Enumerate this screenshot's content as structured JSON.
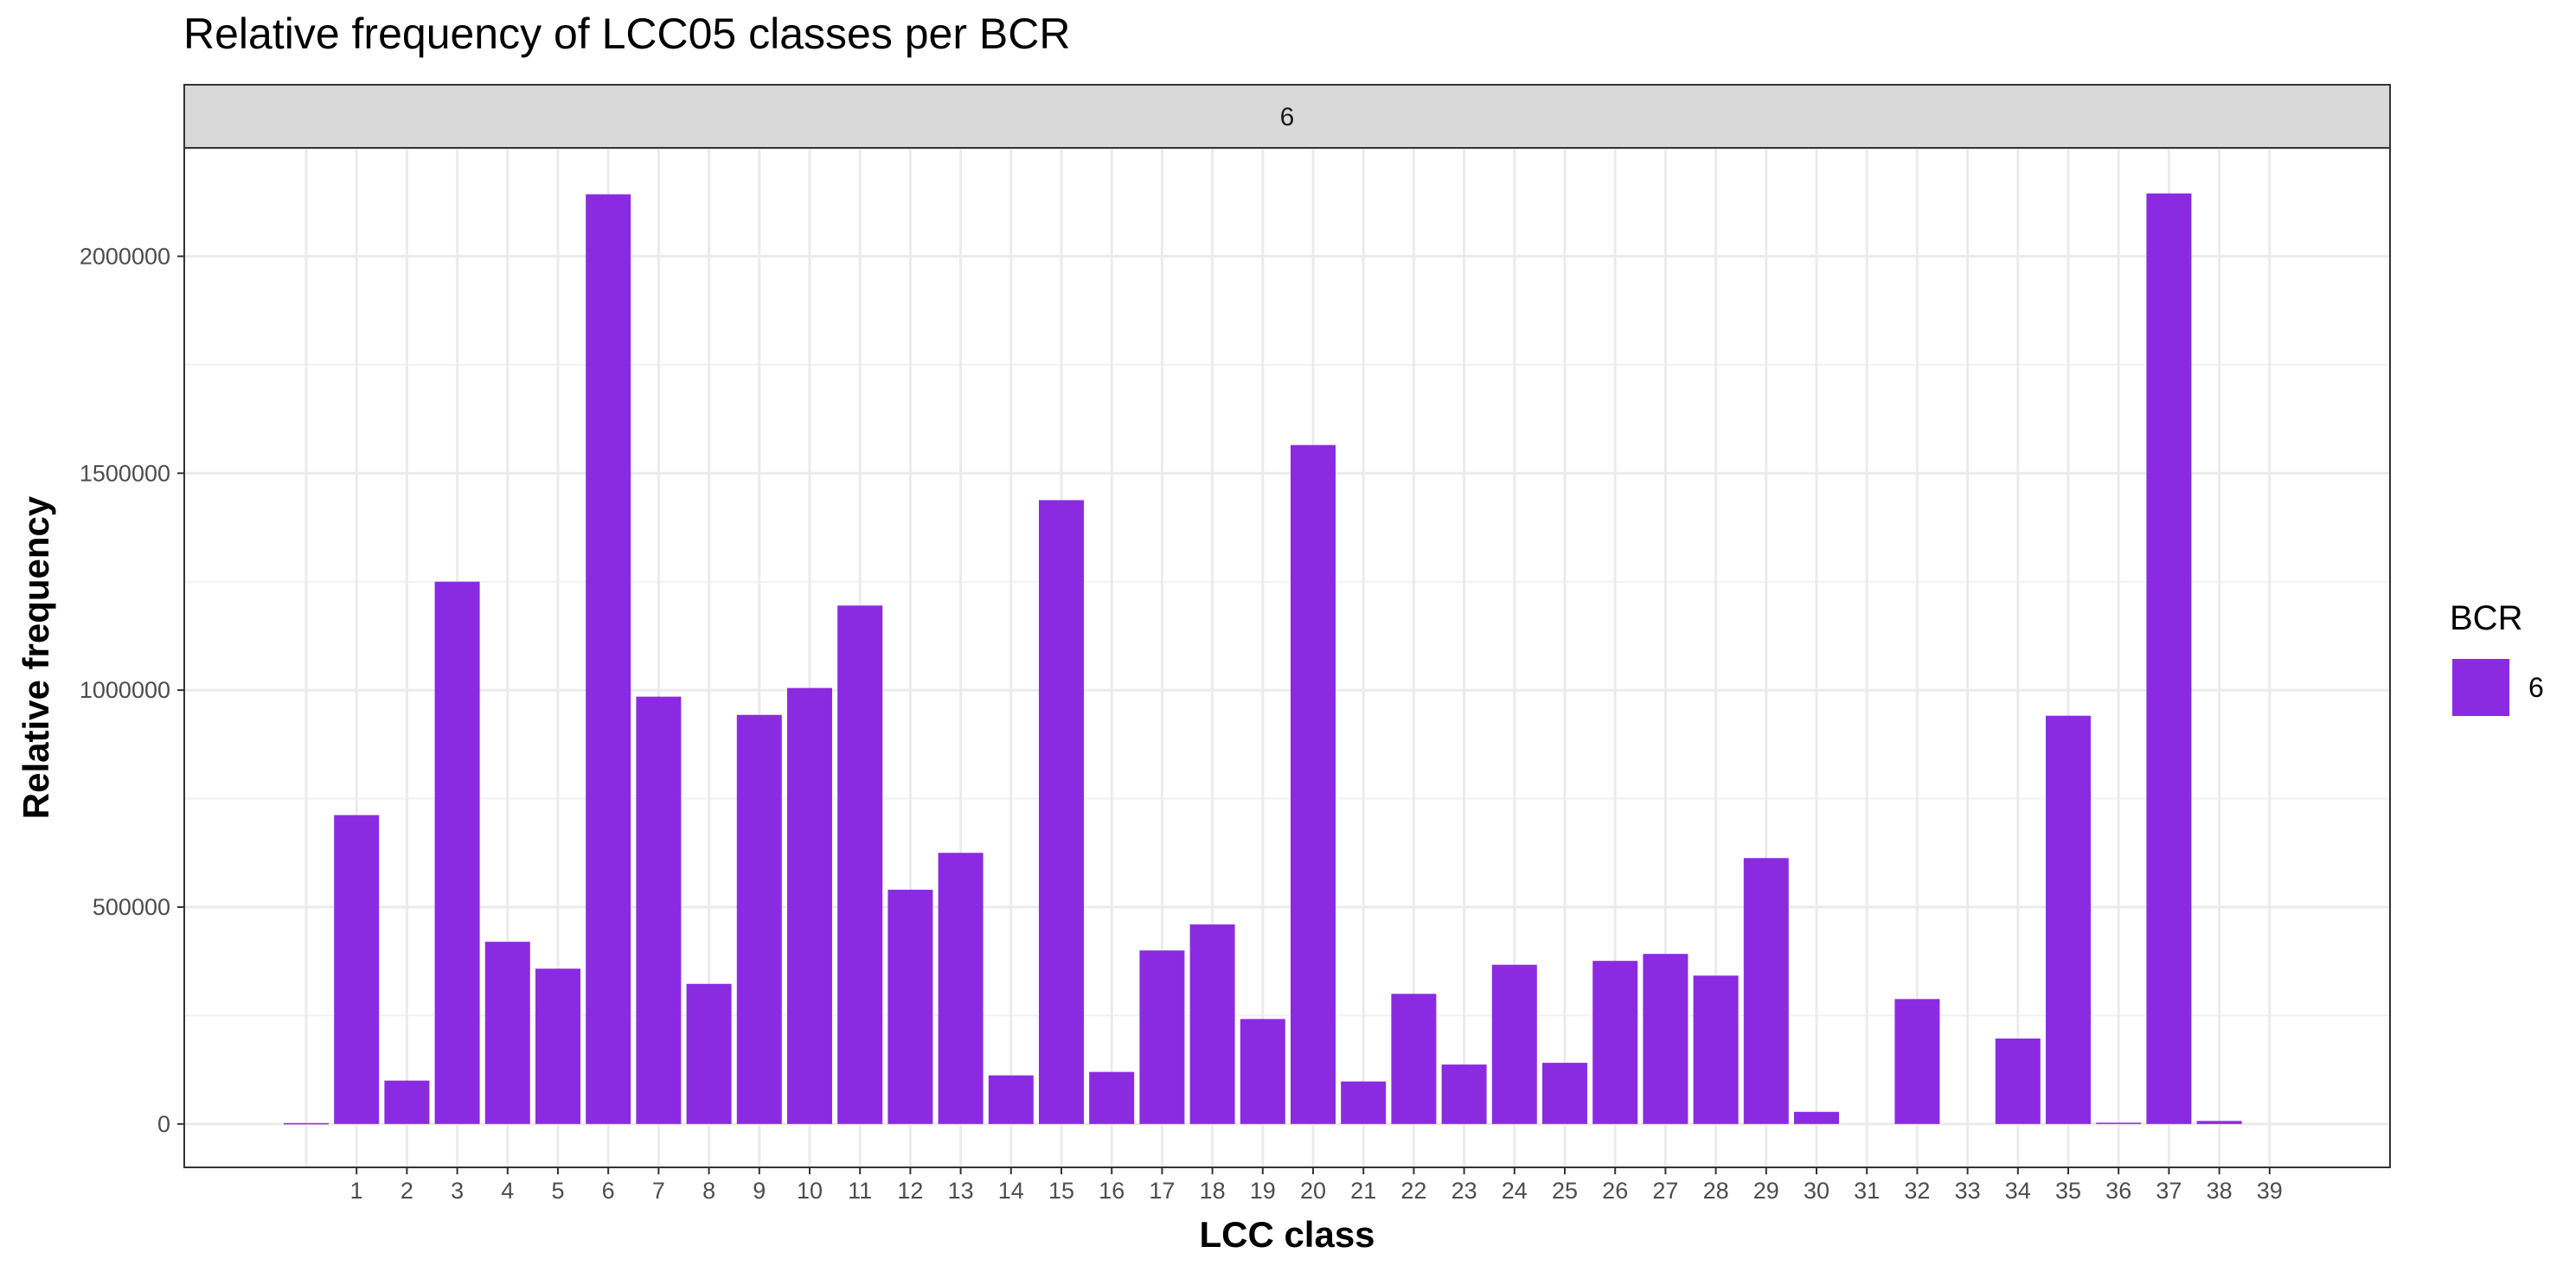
{
  "chart_data": {
    "type": "bar",
    "title": "Relative frequency of LCC05 classes per BCR",
    "xlabel": "LCC class",
    "ylabel": "Relative frequency",
    "facet_label": "6",
    "categories": [
      "",
      "1",
      "2",
      "3",
      "4",
      "5",
      "6",
      "7",
      "8",
      "9",
      "10",
      "11",
      "12",
      "13",
      "14",
      "15",
      "16",
      "17",
      "18",
      "19",
      "20",
      "21",
      "22",
      "23",
      "24",
      "25",
      "26",
      "27",
      "28",
      "29",
      "30",
      "31",
      "32",
      "33",
      "34",
      "35",
      "36",
      "37",
      "38",
      "39"
    ],
    "tick_labels": [
      "1",
      "2",
      "3",
      "4",
      "5",
      "6",
      "7",
      "8",
      "9",
      "10",
      "11",
      "12",
      "13",
      "14",
      "15",
      "16",
      "17",
      "18",
      "19",
      "20",
      "21",
      "22",
      "23",
      "24",
      "25",
      "26",
      "27",
      "28",
      "29",
      "30",
      "31",
      "32",
      "33",
      "34",
      "35",
      "36",
      "37",
      "38",
      "39"
    ],
    "series": [
      {
        "name": "6",
        "color": "#8A2BE2",
        "values": [
          2000,
          712000,
          100000,
          1250000,
          420000,
          358000,
          2143000,
          985000,
          323000,
          943000,
          1005000,
          1195000,
          540000,
          625000,
          112000,
          1438000,
          120000,
          400000,
          460000,
          242000,
          1565000,
          98000,
          300000,
          137000,
          367000,
          141000,
          376000,
          392000,
          342000,
          613000,
          28000,
          0,
          288000,
          0,
          197000,
          941000,
          3000,
          2145000,
          7000,
          0
        ]
      }
    ],
    "ylim": [
      -100000,
      2250000
    ],
    "yticks": [
      0,
      500000,
      1000000,
      1500000,
      2000000
    ],
    "ytick_labels": [
      "0",
      "500000",
      "1000000",
      "1500000",
      "2000000"
    ],
    "grid": true,
    "legend": {
      "title": "BCR",
      "entries": [
        "6"
      ],
      "position": "right"
    }
  }
}
